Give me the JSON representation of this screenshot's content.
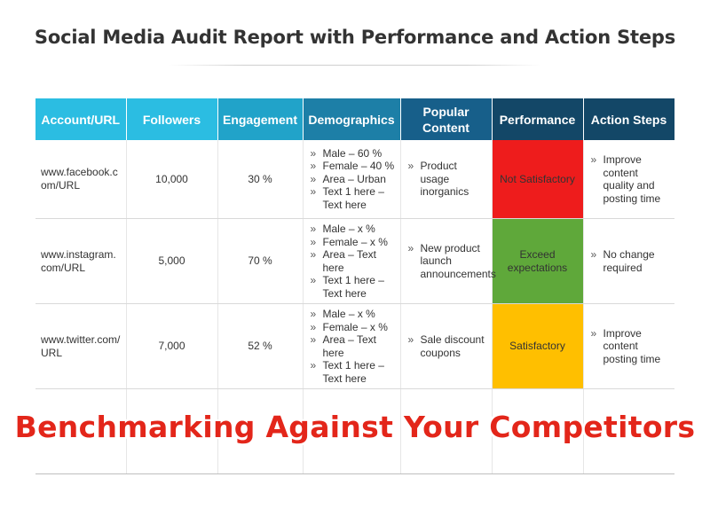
{
  "title": "Social Media Audit Report with Performance and Action Steps",
  "overlay_text": "Benchmarking Against Your Competitors",
  "headers": {
    "account": "Account/URL",
    "followers": "Followers",
    "engagement": "Engagement",
    "demographics": "Demographics",
    "popular_content": "Popular Content",
    "performance": "Performance",
    "action_steps": "Action Steps"
  },
  "rows": [
    {
      "account": "www.facebook.com/URL",
      "followers": "10,000",
      "engagement": "30 %",
      "demographics": [
        "Male – 60 %",
        "Female – 40 %",
        "Area – Urban",
        "Text 1 here – Text here"
      ],
      "popular_content": "Product usage inorganics",
      "performance": "Not Satisfactory",
      "action_steps": "Improve content quality and posting time"
    },
    {
      "account": "www.instagram.com/URL",
      "followers": "5,000",
      "engagement": "70 %",
      "demographics": [
        "Male – x %",
        "Female – x %",
        "Area – Text here",
        "Text 1 here – Text here"
      ],
      "popular_content": "New product launch announcements",
      "performance": "Exceed expectations",
      "action_steps": "No change required"
    },
    {
      "account": "www.twitter.com/URL",
      "followers": "7,000",
      "engagement": "52 %",
      "demographics": [
        "Male – x %",
        "Female – x %",
        "Area – Text here",
        "Text 1 here – Text here"
      ],
      "popular_content": "Sale discount coupons",
      "performance": "Satisfactory",
      "action_steps": "Improve content posting time"
    }
  ],
  "colors": {
    "header_light": "#2bbde2",
    "header_dark": "#134767",
    "perf_red": "#ee1c1c",
    "perf_green": "#5fa83a",
    "perf_yellow": "#ffbf00",
    "overlay_red": "#e3261a"
  }
}
